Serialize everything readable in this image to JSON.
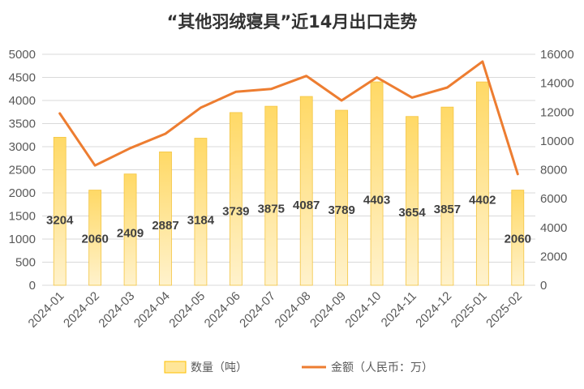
{
  "chart_data": {
    "type": "bar",
    "title": "“其他羽绒寝具”近14月出口走势",
    "categories": [
      "2024-01",
      "2024-02",
      "2024-03",
      "2024-04",
      "2024-05",
      "2024-06",
      "2024-07",
      "2024-08",
      "2024-09",
      "2024-10",
      "2024-11",
      "2024-12",
      "2025-01",
      "2025-02"
    ],
    "series": [
      {
        "name": "数量（吨）",
        "kind": "bar",
        "axis": "left",
        "color": "#ffd966",
        "values": [
          3204,
          2060,
          2409,
          2887,
          3184,
          3739,
          3875,
          4087,
          3789,
          4403,
          3654,
          3857,
          4402,
          2060
        ],
        "labels": [
          "3204",
          "2060",
          "2409",
          "2887",
          "3184",
          "3739",
          "3875",
          "4087",
          "3789",
          "4403",
          "3654",
          "3857",
          "4402",
          "2060"
        ]
      },
      {
        "name": "金额（人民币：万）",
        "kind": "line",
        "axis": "right",
        "color": "#ed7d31",
        "values": [
          11900,
          8300,
          9500,
          10500,
          12300,
          13400,
          13600,
          14500,
          12800,
          14400,
          13000,
          13700,
          15500,
          7700
        ]
      }
    ],
    "y_left": {
      "min": 0,
      "max": 5000,
      "step": 500,
      "ticks": [
        "0",
        "500",
        "1000",
        "1500",
        "2000",
        "2500",
        "3000",
        "3500",
        "4000",
        "4500",
        "5000"
      ]
    },
    "y_right": {
      "min": 0,
      "max": 16000,
      "step": 2000,
      "ticks": [
        "0",
        "2000",
        "4000",
        "6000",
        "8000",
        "10000",
        "12000",
        "14000",
        "16000"
      ]
    },
    "grid": true,
    "legend_position": "bottom"
  }
}
